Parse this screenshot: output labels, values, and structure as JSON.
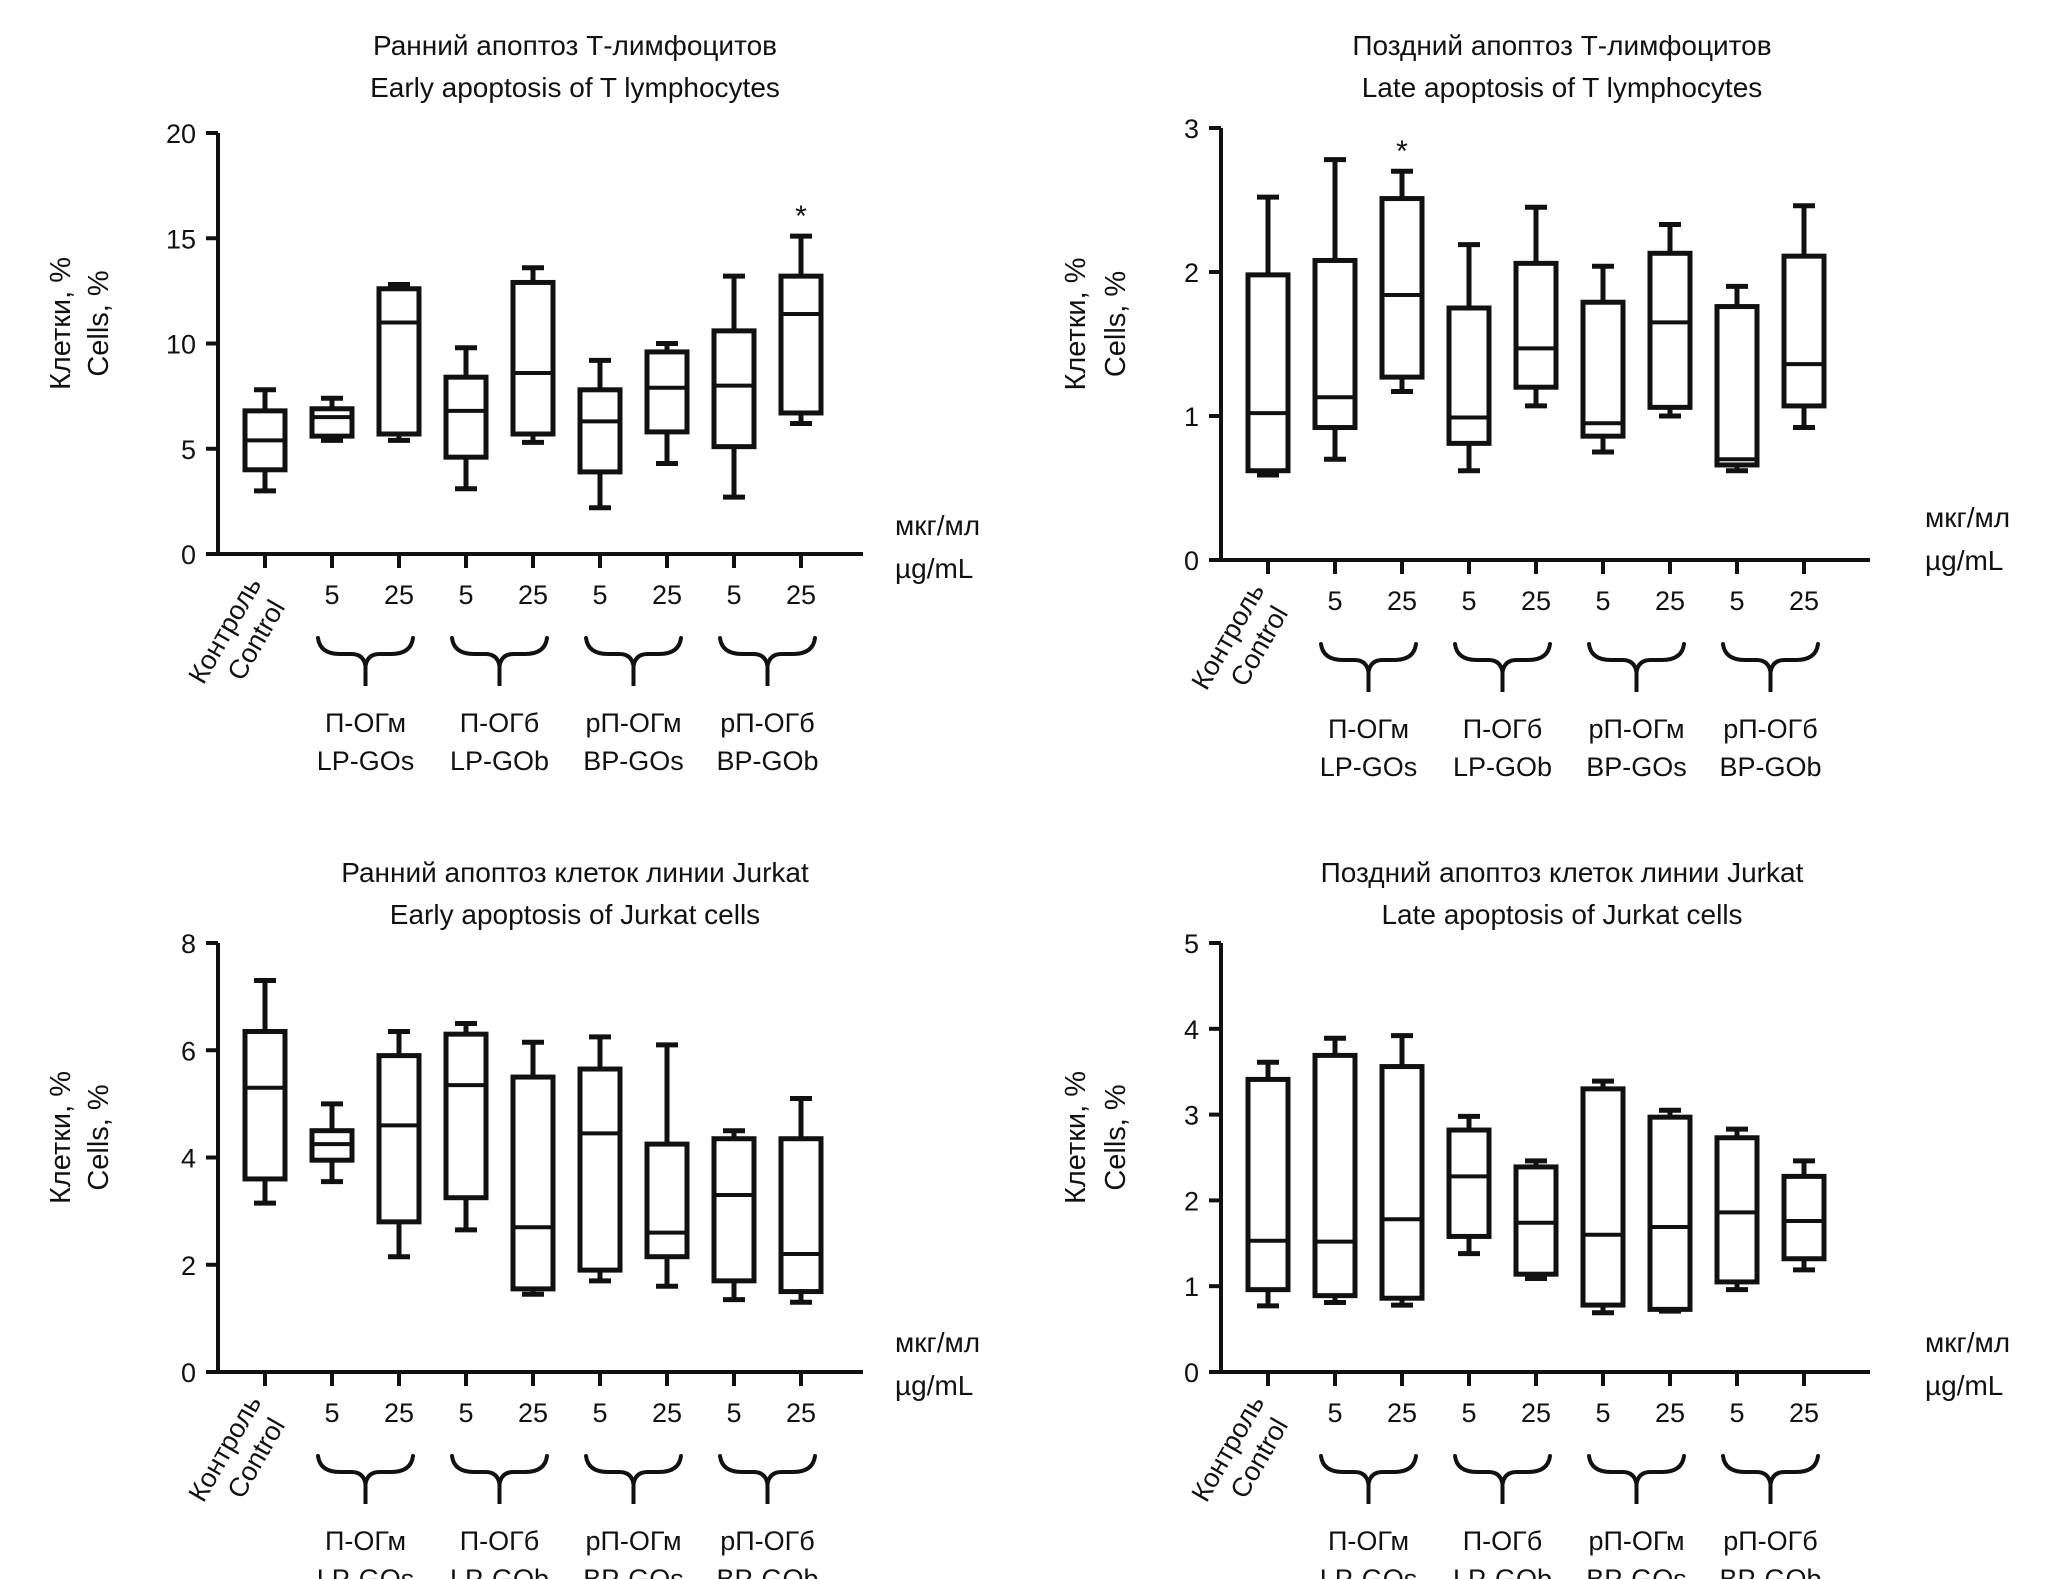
{
  "chart_data": [
    {
      "type": "boxplot",
      "title_ru": "Ранний апоптоз Т-лимфоцитов",
      "title_en": "Early apoptosis of T lymphocytes",
      "ylabel_ru": "Клетки, %",
      "ylabel_en": "Cells, %",
      "ylim": [
        0,
        20
      ],
      "yticks": [
        0,
        5,
        10,
        15,
        20
      ],
      "categories": [
        "Control",
        "LP-GOs 5",
        "LP-GOs 25",
        "LP-GOb 5",
        "LP-GOb 25",
        "BP-GOs 5",
        "BP-GOs 25",
        "BP-GOb 5",
        "BP-GOb 25"
      ],
      "boxes": [
        {
          "min": 3.0,
          "q1": 4.0,
          "median": 5.4,
          "q3": 6.8,
          "max": 7.8
        },
        {
          "min": 5.4,
          "q1": 5.6,
          "median": 6.5,
          "q3": 6.9,
          "max": 7.4
        },
        {
          "min": 5.4,
          "q1": 5.7,
          "median": 11.0,
          "q3": 12.6,
          "max": 12.8
        },
        {
          "min": 3.1,
          "q1": 4.6,
          "median": 6.8,
          "q3": 8.4,
          "max": 9.8
        },
        {
          "min": 5.3,
          "q1": 5.7,
          "median": 8.6,
          "q3": 12.9,
          "max": 13.6
        },
        {
          "min": 2.2,
          "q1": 3.9,
          "median": 6.3,
          "q3": 7.8,
          "max": 9.2
        },
        {
          "min": 4.3,
          "q1": 5.8,
          "median": 7.9,
          "q3": 9.6,
          "max": 10.0
        },
        {
          "min": 2.7,
          "q1": 5.1,
          "median": 8.0,
          "q3": 10.6,
          "max": 13.2
        },
        {
          "min": 6.2,
          "q1": 6.7,
          "median": 11.4,
          "q3": 13.2,
          "max": 15.1
        }
      ],
      "significance": [
        {
          "category": "BP-GOb 25",
          "mark": "*"
        }
      ]
    },
    {
      "type": "boxplot",
      "title_ru": "Поздний апоптоз Т-лимфоцитов",
      "title_en": "Late apoptosis of T lymphocytes",
      "ylabel_ru": "Клетки, %",
      "ylabel_en": "Cells, %",
      "ylim": [
        0,
        3
      ],
      "yticks": [
        0,
        1,
        2,
        3
      ],
      "categories": [
        "Control",
        "LP-GOs 5",
        "LP-GOs 25",
        "LP-GOb 5",
        "LP-GOb 25",
        "BP-GOs 5",
        "BP-GOs 25",
        "BP-GOb 5",
        "BP-GOb 25"
      ],
      "boxes": [
        {
          "min": 0.59,
          "q1": 0.62,
          "median": 1.02,
          "q3": 1.98,
          "max": 2.52
        },
        {
          "min": 0.7,
          "q1": 0.92,
          "median": 1.13,
          "q3": 2.08,
          "max": 2.78
        },
        {
          "min": 1.17,
          "q1": 1.27,
          "median": 1.84,
          "q3": 2.51,
          "max": 2.7
        },
        {
          "min": 0.62,
          "q1": 0.81,
          "median": 0.99,
          "q3": 1.75,
          "max": 2.19
        },
        {
          "min": 1.07,
          "q1": 1.2,
          "median": 1.47,
          "q3": 2.06,
          "max": 2.45
        },
        {
          "min": 0.75,
          "q1": 0.86,
          "median": 0.95,
          "q3": 1.79,
          "max": 2.04
        },
        {
          "min": 1.0,
          "q1": 1.06,
          "median": 1.65,
          "q3": 2.13,
          "max": 2.33
        },
        {
          "min": 0.62,
          "q1": 0.66,
          "median": 0.7,
          "q3": 1.76,
          "max": 1.9
        },
        {
          "min": 0.92,
          "q1": 1.07,
          "median": 1.36,
          "q3": 2.11,
          "max": 2.46
        }
      ],
      "significance": [
        {
          "category": "LP-GOs 25",
          "mark": "*"
        }
      ]
    },
    {
      "type": "boxplot",
      "title_ru": "Ранний апоптоз клеток линии Jurkat",
      "title_en": "Early apoptosis of Jurkat cells",
      "ylabel_ru": "Клетки, %",
      "ylabel_en": "Cells, %",
      "ylim": [
        0,
        8
      ],
      "yticks": [
        0,
        2,
        4,
        6,
        8
      ],
      "categories": [
        "Control",
        "LP-GOs 5",
        "LP-GOs 25",
        "LP-GOb 5",
        "LP-GOb 25",
        "BP-GOs 5",
        "BP-GOs 25",
        "BP-GOb 5",
        "BP-GOb 25"
      ],
      "boxes": [
        {
          "min": 3.15,
          "q1": 3.6,
          "median": 5.3,
          "q3": 6.35,
          "max": 7.3
        },
        {
          "min": 3.55,
          "q1": 3.95,
          "median": 4.25,
          "q3": 4.5,
          "max": 5.0
        },
        {
          "min": 2.15,
          "q1": 2.8,
          "median": 4.6,
          "q3": 5.9,
          "max": 6.35
        },
        {
          "min": 2.65,
          "q1": 3.25,
          "median": 5.35,
          "q3": 6.3,
          "max": 6.5
        },
        {
          "min": 1.45,
          "q1": 1.55,
          "median": 2.7,
          "q3": 5.5,
          "max": 6.15
        },
        {
          "min": 1.7,
          "q1": 1.9,
          "median": 4.45,
          "q3": 5.65,
          "max": 6.25
        },
        {
          "min": 1.6,
          "q1": 2.15,
          "median": 2.6,
          "q3": 4.25,
          "max": 6.1
        },
        {
          "min": 1.35,
          "q1": 1.7,
          "median": 3.3,
          "q3": 4.35,
          "max": 4.5
        },
        {
          "min": 1.3,
          "q1": 1.5,
          "median": 2.2,
          "q3": 4.35,
          "max": 5.1
        }
      ],
      "significance": []
    },
    {
      "type": "boxplot",
      "title_ru": "Поздний апоптоз клеток линии Jurkat",
      "title_en": "Late apoptosis of Jurkat cells",
      "ylabel_ru": "Клетки, %",
      "ylabel_en": "Cells, %",
      "ylim": [
        0,
        5
      ],
      "yticks": [
        0,
        1,
        2,
        3,
        4,
        5
      ],
      "categories": [
        "Control",
        "LP-GOs 5",
        "LP-GOs 25",
        "LP-GOb 5",
        "LP-GOb 25",
        "BP-GOs 5",
        "BP-GOs 25",
        "BP-GOb 5",
        "BP-GOb 25"
      ],
      "boxes": [
        {
          "min": 0.77,
          "q1": 0.96,
          "median": 1.53,
          "q3": 3.41,
          "max": 3.61
        },
        {
          "min": 0.81,
          "q1": 0.89,
          "median": 1.52,
          "q3": 3.69,
          "max": 3.89
        },
        {
          "min": 0.78,
          "q1": 0.86,
          "median": 1.78,
          "q3": 3.56,
          "max": 3.92
        },
        {
          "min": 1.38,
          "q1": 1.58,
          "median": 2.28,
          "q3": 2.82,
          "max": 2.98
        },
        {
          "min": 1.09,
          "q1": 1.14,
          "median": 1.74,
          "q3": 2.39,
          "max": 2.46
        },
        {
          "min": 0.69,
          "q1": 0.78,
          "median": 1.6,
          "q3": 3.3,
          "max": 3.39
        },
        {
          "min": 0.71,
          "q1": 0.73,
          "median": 1.69,
          "q3": 2.97,
          "max": 3.05
        },
        {
          "min": 0.96,
          "q1": 1.05,
          "median": 1.86,
          "q3": 2.73,
          "max": 2.83
        },
        {
          "min": 1.19,
          "q1": 1.32,
          "median": 1.76,
          "q3": 2.28,
          "max": 2.46
        }
      ],
      "significance": []
    }
  ],
  "labels": {
    "control_ru": "Контроль",
    "control_en": "Control",
    "dose_5": "5",
    "dose_25": "25",
    "unit_ru": "мкг/мл",
    "unit_en": "µg/mL",
    "groups": [
      {
        "ru": "П-ОГм",
        "en": "LP-GOs"
      },
      {
        "ru": "П-ОГб",
        "en": "LP-GOb"
      },
      {
        "ru": "рП-ОГм",
        "en": "BP-GOs"
      },
      {
        "ru": "рП-ОГб",
        "en": "BP-GOb"
      }
    ]
  }
}
